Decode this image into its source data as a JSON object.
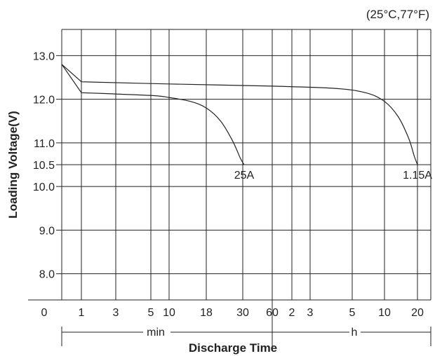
{
  "chart_data": {
    "type": "line",
    "condition_note": "(25°C,77°F)",
    "xlabel": "Discharge Time",
    "ylabel": "Loading Voltage(V)",
    "unit_labels": {
      "min": "min",
      "h": "h"
    },
    "ylim": [
      7.4,
      13.6
    ],
    "y_ticks": [
      "13.0",
      "12.0",
      "11.0",
      "10.5",
      "10.0",
      "9.0",
      "8.0"
    ],
    "y_axis_zero": "0",
    "x_ticks": [
      {
        "label": "1",
        "minutes": 1
      },
      {
        "label": "3",
        "minutes": 3
      },
      {
        "label": "5",
        "minutes": 5
      },
      {
        "label": "10",
        "minutes": 10
      },
      {
        "label": "18",
        "minutes": 18
      },
      {
        "label": "30",
        "minutes": 30
      },
      {
        "label": "60",
        "minutes": 60
      },
      {
        "label": "2",
        "minutes": 120
      },
      {
        "label": "3",
        "minutes": 180
      },
      {
        "label": "5",
        "minutes": 300
      },
      {
        "label": "10",
        "minutes": 600
      },
      {
        "label": "20",
        "minutes": 1200
      }
    ],
    "grid": true,
    "series": [
      {
        "name": "25A",
        "points": [
          {
            "minutes": 0.5,
            "voltage": 12.8
          },
          {
            "minutes": 1,
            "voltage": 12.15
          },
          {
            "minutes": 3,
            "voltage": 12.12
          },
          {
            "minutes": 6,
            "voltage": 12.08
          },
          {
            "minutes": 10,
            "voltage": 12.04
          },
          {
            "minutes": 14,
            "voltage": 11.95
          },
          {
            "minutes": 18,
            "voltage": 11.8
          },
          {
            "minutes": 22,
            "voltage": 11.5
          },
          {
            "minutes": 26,
            "voltage": 11.05
          },
          {
            "minutes": 29,
            "voltage": 10.65
          },
          {
            "minutes": 31,
            "voltage": 10.5
          }
        ]
      },
      {
        "name": "1.15A",
        "points": [
          {
            "minutes": 0.5,
            "voltage": 12.8
          },
          {
            "minutes": 1,
            "voltage": 12.4
          },
          {
            "minutes": 10,
            "voltage": 12.35
          },
          {
            "minutes": 60,
            "voltage": 12.3
          },
          {
            "minutes": 240,
            "voltage": 12.25
          },
          {
            "minutes": 400,
            "voltage": 12.15
          },
          {
            "minutes": 600,
            "voltage": 11.95
          },
          {
            "minutes": 800,
            "voltage": 11.6
          },
          {
            "minutes": 1000,
            "voltage": 11.1
          },
          {
            "minutes": 1120,
            "voltage": 10.7
          },
          {
            "minutes": 1200,
            "voltage": 10.5
          }
        ]
      }
    ]
  }
}
